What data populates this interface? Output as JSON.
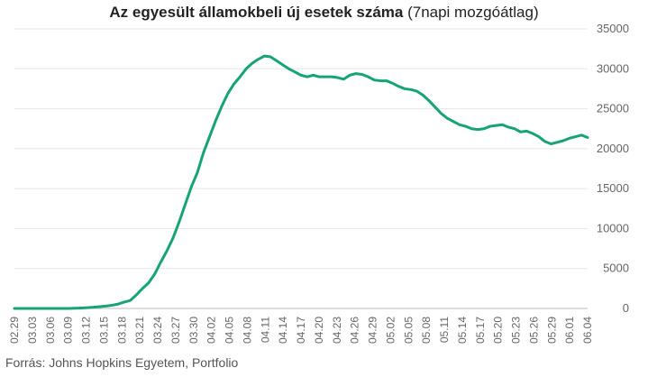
{
  "title_bold": "Az egyesült államokbeli  új esetek száma",
  "title_light": " (7napi mozgóátlag)",
  "source": "Forrás: Johns Hopkins Egyetem, Portfolio",
  "colors": {
    "line": "#16a572",
    "grid": "#e6e6e6",
    "text": "#666666"
  },
  "chart_data": {
    "type": "line",
    "title": "Az egyesült államokbeli  új esetek száma (7napi mozgóátlag)",
    "xlabel": "",
    "ylabel": "",
    "ylim": [
      0,
      35000
    ],
    "yticks": [
      0,
      5000,
      10000,
      15000,
      20000,
      25000,
      30000,
      35000
    ],
    "ytick_labels": [
      "0",
      "5000",
      "10000",
      "15000",
      "20000",
      "25000",
      "30000",
      "35000"
    ],
    "y_axis_side": "right",
    "grid": true,
    "legend": "none",
    "xtick_labels": [
      "02.29",
      "03.03",
      "03.06",
      "03.09",
      "03.12",
      "03.15",
      "03.18",
      "03.21",
      "03.24",
      "03.27",
      "03.30",
      "04.02",
      "04.05",
      "04.08",
      "04.11",
      "04.14",
      "04.17",
      "04.20",
      "04.23",
      "04.26",
      "04.29",
      "05.02",
      "05.05",
      "05.08",
      "05.11",
      "05.14",
      "05.17",
      "05.20",
      "05.23",
      "05.26",
      "05.29",
      "06.01",
      "06.04"
    ],
    "series": [
      {
        "values": [
          0,
          0,
          0,
          0,
          0,
          0,
          0,
          0,
          0,
          0,
          30,
          60,
          100,
          150,
          220,
          300,
          400,
          550,
          800,
          1000,
          1700,
          2500,
          3200,
          4300,
          5800,
          7200,
          8800,
          10800,
          13000,
          15200,
          17000,
          19500,
          21500,
          23500,
          25300,
          26900,
          28100,
          29000,
          30000,
          30700,
          31200,
          31600,
          31500,
          31000,
          30500,
          30000,
          29600,
          29200,
          29000,
          29200,
          29000,
          29000,
          29000,
          28900,
          28700,
          29200,
          29400,
          29300,
          29000,
          28600,
          28500,
          28500,
          28200,
          27800,
          27500,
          27400,
          27200,
          26700,
          26000,
          25200,
          24400,
          23800,
          23400,
          23000,
          22800,
          22500,
          22400,
          22500,
          22800,
          22900,
          23000,
          22700,
          22500,
          22100,
          22200,
          21900,
          21500,
          20900,
          20600,
          20800,
          21000,
          21300,
          21500,
          21700,
          21400
        ]
      }
    ]
  }
}
